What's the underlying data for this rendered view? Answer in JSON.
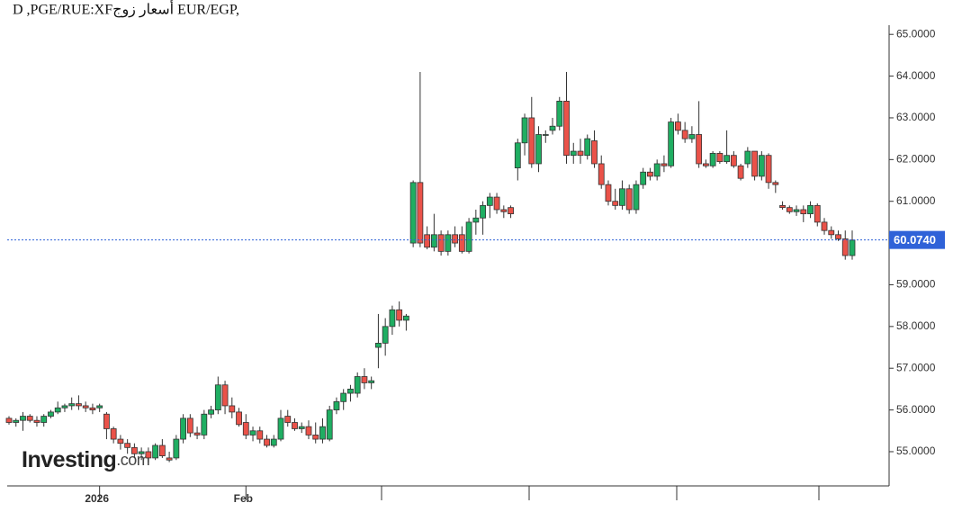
{
  "chart_data": {
    "type": "candlestick",
    "title": "D ,PGE/RUE:XFأسعار زوج EUR/EGP,",
    "watermark": {
      "brand": "Investing",
      "suffix": ".com"
    },
    "up_color": "#1fae62",
    "down_color": "#ea5249",
    "ylim": [
      54.18,
      65.22
    ],
    "yticks": [
      {
        "value": 55,
        "label": "55.0000"
      },
      {
        "value": 56,
        "label": "56.0000"
      },
      {
        "value": 57,
        "label": "57.0000"
      },
      {
        "value": 58,
        "label": "58.0000"
      },
      {
        "value": 59,
        "label": "59.0000"
      },
      {
        "value": 60,
        "label": "60.0000"
      },
      {
        "value": 61,
        "label": "61.0000"
      },
      {
        "value": 62,
        "label": "62.0000"
      },
      {
        "value": 63,
        "label": "63.0000"
      },
      {
        "value": 64,
        "label": "64.0000"
      },
      {
        "value": 65,
        "label": "65.0000"
      }
    ],
    "last_price": {
      "value": 60.074,
      "label": "60.0740",
      "color": "#2f62d8"
    },
    "categories": [
      null,
      null,
      null,
      null,
      null,
      null,
      null,
      null,
      null,
      null,
      null,
      null,
      null,
      "2026",
      null,
      null,
      null,
      null,
      null,
      null,
      null,
      null,
      null,
      null,
      null,
      null,
      null,
      null,
      null,
      null,
      null,
      null,
      null,
      null,
      "Feb",
      null,
      null,
      null,
      null,
      null,
      null,
      null,
      null,
      null,
      null,
      null,
      null,
      null,
      null,
      null,
      null,
      null,
      null,
      null,
      null,
      null,
      null,
      null,
      null,
      null,
      null,
      null,
      null,
      null,
      null,
      null,
      null,
      null,
      null,
      null,
      null,
      null,
      null,
      null,
      null,
      null,
      null,
      null,
      null,
      null,
      null,
      null,
      null,
      null,
      null,
      null,
      null,
      null,
      null,
      null,
      null,
      null,
      null,
      null,
      null,
      null,
      null,
      null,
      null,
      null,
      null,
      null,
      null,
      null,
      null,
      null,
      null,
      null,
      null,
      null,
      null,
      null,
      null,
      null,
      null,
      null,
      null,
      null,
      null,
      null,
      null,
      null
    ],
    "open": [
      55.8,
      55.7,
      55.75,
      55.85,
      55.75,
      55.7,
      55.85,
      55.95,
      56.05,
      56.1,
      56.15,
      56.1,
      56.05,
      56.05,
      55.9,
      55.55,
      55.3,
      55.2,
      55.1,
      54.95,
      55.0,
      54.85,
      55.15,
      54.85,
      54.85,
      55.3,
      55.8,
      55.45,
      55.4,
      55.9,
      56.0,
      56.6,
      56.1,
      55.95,
      55.7,
      55.4,
      55.5,
      55.3,
      55.15,
      55.3,
      55.85,
      55.7,
      55.55,
      55.6,
      55.4,
      55.3,
      55.3,
      56.0,
      56.2,
      56.4,
      56.4,
      56.8,
      56.65,
      57.5,
      57.6,
      58.0,
      58.4,
      58.15,
      60.0,
      61.45,
      60.2,
      59.9,
      60.2,
      59.8,
      60.2,
      60.2,
      59.8,
      60.5,
      60.6,
      60.9,
      61.1,
      60.8,
      60.85,
      61.8,
      62.4,
      63.0,
      61.9,
      62.6,
      62.7,
      62.8,
      63.4,
      62.1,
      62.2,
      62.1,
      62.45,
      61.9,
      61.4,
      61.0,
      60.9,
      61.3,
      60.8,
      61.4,
      61.7,
      61.6,
      61.9,
      61.85,
      62.9,
      62.7,
      62.5,
      62.6,
      61.9,
      61.85,
      62.15,
      61.95,
      62.1,
      61.85,
      61.9,
      62.2,
      61.6,
      62.1,
      61.45,
      60.9,
      60.85,
      60.75,
      60.8,
      60.7,
      60.9,
      60.5,
      60.3,
      60.2,
      60.1,
      59.7
    ],
    "high": [
      55.85,
      55.8,
      55.95,
      55.9,
      55.85,
      55.9,
      56.0,
      56.2,
      56.15,
      56.3,
      56.35,
      56.2,
      56.15,
      56.15,
      55.95,
      55.6,
      55.4,
      55.3,
      55.2,
      55.1,
      55.1,
      55.2,
      55.3,
      55.0,
      55.4,
      55.9,
      55.9,
      55.6,
      56.0,
      56.1,
      56.8,
      56.7,
      56.3,
      56.05,
      55.9,
      55.6,
      55.6,
      55.4,
      55.4,
      56.0,
      56.0,
      55.8,
      55.7,
      55.75,
      55.7,
      55.8,
      56.1,
      56.3,
      56.5,
      56.6,
      56.9,
      57.0,
      56.8,
      58.3,
      58.2,
      58.5,
      58.6,
      58.3,
      61.5,
      64.1,
      60.4,
      60.7,
      60.3,
      60.3,
      60.4,
      60.4,
      60.6,
      60.8,
      61.0,
      61.2,
      61.2,
      60.9,
      60.9,
      62.5,
      63.1,
      63.5,
      62.8,
      62.7,
      63.0,
      63.5,
      64.1,
      62.4,
      62.5,
      62.6,
      62.7,
      62.1,
      61.5,
      61.3,
      61.5,
      61.4,
      61.5,
      61.8,
      61.8,
      62.0,
      62.1,
      63.0,
      63.1,
      62.9,
      62.8,
      63.4,
      62.0,
      62.2,
      62.2,
      62.7,
      62.2,
      61.9,
      62.3,
      62.2,
      62.2,
      62.15,
      61.5,
      61.0,
      60.9,
      60.9,
      60.9,
      61.0,
      60.95,
      60.6,
      60.4,
      60.3,
      60.3,
      60.3
    ],
    "low": [
      55.65,
      55.6,
      55.5,
      55.7,
      55.6,
      55.6,
      55.8,
      55.9,
      55.95,
      56.0,
      56.0,
      55.95,
      55.9,
      55.95,
      55.3,
      55.2,
      55.05,
      54.95,
      54.85,
      54.8,
      54.75,
      54.8,
      54.85,
      54.75,
      54.8,
      55.2,
      55.35,
      55.3,
      55.3,
      55.8,
      55.9,
      55.9,
      55.8,
      55.6,
      55.3,
      55.25,
      55.2,
      55.1,
      55.1,
      55.25,
      55.6,
      55.5,
      55.45,
      55.3,
      55.2,
      55.2,
      55.25,
      55.9,
      56.0,
      56.2,
      56.3,
      56.5,
      56.5,
      57.0,
      57.3,
      57.8,
      58.0,
      57.9,
      59.9,
      59.9,
      59.85,
      59.8,
      59.7,
      59.7,
      59.9,
      59.75,
      59.75,
      60.2,
      60.2,
      60.6,
      60.7,
      60.6,
      60.6,
      61.5,
      62.1,
      61.8,
      61.7,
      62.4,
      62.6,
      62.7,
      61.9,
      61.9,
      61.9,
      62.0,
      61.8,
      61.3,
      60.9,
      60.8,
      60.8,
      60.7,
      60.7,
      61.3,
      61.5,
      61.5,
      61.7,
      61.8,
      62.6,
      62.4,
      62.4,
      61.8,
      61.8,
      61.8,
      61.9,
      61.9,
      61.8,
      61.5,
      61.8,
      61.5,
      61.5,
      61.3,
      61.2,
      60.8,
      60.7,
      60.65,
      60.5,
      60.6,
      60.4,
      60.2,
      60.1,
      60.05,
      59.6,
      59.6
    ],
    "close": [
      55.7,
      55.75,
      55.85,
      55.75,
      55.7,
      55.85,
      55.95,
      56.05,
      56.1,
      56.15,
      56.1,
      56.05,
      56.0,
      56.1,
      55.55,
      55.3,
      55.2,
      55.1,
      54.95,
      55.0,
      54.85,
      55.15,
      54.9,
      54.8,
      55.3,
      55.8,
      55.45,
      55.4,
      55.9,
      56.0,
      56.6,
      56.1,
      55.95,
      55.65,
      55.4,
      55.5,
      55.3,
      55.15,
      55.3,
      55.8,
      55.7,
      55.55,
      55.6,
      55.4,
      55.3,
      55.6,
      56.0,
      56.2,
      56.4,
      56.5,
      56.8,
      56.65,
      56.7,
      57.6,
      58.0,
      58.4,
      58.15,
      58.25,
      61.45,
      60.0,
      59.9,
      60.2,
      59.8,
      60.2,
      60.0,
      59.8,
      60.5,
      60.6,
      60.9,
      61.1,
      60.8,
      60.75,
      60.7,
      62.4,
      63.0,
      61.9,
      62.6,
      62.6,
      62.8,
      63.4,
      62.1,
      62.2,
      62.1,
      62.5,
      61.9,
      61.4,
      61.0,
      60.9,
      61.3,
      60.8,
      61.4,
      61.7,
      61.6,
      61.9,
      61.85,
      62.9,
      62.7,
      62.5,
      62.6,
      61.9,
      61.85,
      62.15,
      61.95,
      62.1,
      61.85,
      61.55,
      62.2,
      61.6,
      62.1,
      61.45,
      61.4,
      60.85,
      60.75,
      60.8,
      60.7,
      60.9,
      60.5,
      60.3,
      60.2,
      60.1,
      59.7,
      60.07
    ]
  }
}
